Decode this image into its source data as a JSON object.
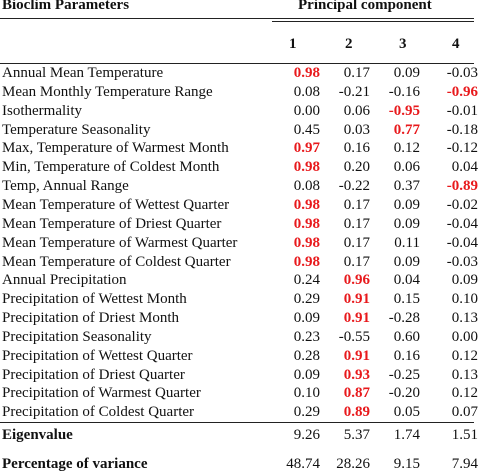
{
  "header": {
    "params_label": "Bioclim Parameters",
    "pc_label": "Principal component",
    "components": [
      "1",
      "2",
      "3",
      "4"
    ]
  },
  "highlight_color": "#e8191c",
  "rows": [
    {
      "label": "Annual Mean Temperature",
      "values": [
        "0.98",
        "0.17",
        "0.09",
        "-0.03"
      ],
      "highlight": 0
    },
    {
      "label": "Mean Monthly Temperature Range",
      "values": [
        "0.08",
        "-0.21",
        "-0.16",
        "-0.96"
      ],
      "highlight": 3
    },
    {
      "label": "Isothermality",
      "values": [
        "0.00",
        "0.06",
        "-0.95",
        "-0.01"
      ],
      "highlight": 2
    },
    {
      "label": "Temperature Seasonality",
      "values": [
        "0.45",
        "0.03",
        "0.77",
        "-0.18"
      ],
      "highlight": 2
    },
    {
      "label": "Max, Temperature of Warmest Month",
      "values": [
        "0.97",
        "0.16",
        "0.12",
        "-0.12"
      ],
      "highlight": 0
    },
    {
      "label": "Min, Temperature of Coldest Month",
      "values": [
        "0.98",
        "0.20",
        "0.06",
        "0.04"
      ],
      "highlight": 0
    },
    {
      "label": "Temp, Annual Range",
      "values": [
        "0.08",
        "-0.22",
        "0.37",
        "-0.89"
      ],
      "highlight": 3
    },
    {
      "label": "Mean Temperature of Wettest Quarter",
      "values": [
        "0.98",
        "0.17",
        "0.09",
        "-0.02"
      ],
      "highlight": 0
    },
    {
      "label": "Mean Temperature of Driest Quarter",
      "values": [
        "0.98",
        "0.17",
        "0.09",
        "-0.04"
      ],
      "highlight": 0
    },
    {
      "label": "Mean Temperature of Warmest Quarter",
      "values": [
        "0.98",
        "0.17",
        "0.11",
        "-0.04"
      ],
      "highlight": 0
    },
    {
      "label": "Mean Temperature of Coldest Quarter",
      "values": [
        "0.98",
        "0.17",
        "0.09",
        "-0.03"
      ],
      "highlight": 0
    },
    {
      "label": "Annual Precipitation",
      "values": [
        "0.24",
        "0.96",
        "0.04",
        "0.09"
      ],
      "highlight": 1
    },
    {
      "label": "Precipitation of Wettest Month",
      "values": [
        "0.29",
        "0.91",
        "0.15",
        "0.10"
      ],
      "highlight": 1
    },
    {
      "label": "Precipitation of Driest Month",
      "values": [
        "0.09",
        "0.91",
        "-0.28",
        "0.13"
      ],
      "highlight": 1
    },
    {
      "label": "Precipitation Seasonality",
      "values": [
        "0.23",
        "-0.55",
        "0.60",
        "0.00"
      ],
      "highlight": -1
    },
    {
      "label": "Precipitation of Wettest Quarter",
      "values": [
        "0.28",
        "0.91",
        "0.16",
        "0.12"
      ],
      "highlight": 1
    },
    {
      "label": "Precipitation of Driest Quarter",
      "values": [
        "0.09",
        "0.93",
        "-0.25",
        "0.13"
      ],
      "highlight": 1
    },
    {
      "label": "Precipitation of Warmest Quarter",
      "values": [
        "0.10",
        "0.87",
        "-0.20",
        "0.12"
      ],
      "highlight": 1
    },
    {
      "label": "Precipitation of Coldest Quarter",
      "values": [
        "0.29",
        "0.89",
        "0.05",
        "0.07"
      ],
      "highlight": 1
    }
  ],
  "footer": [
    {
      "label": "Eigenvalue",
      "values": [
        "9.26",
        "5.37",
        "1.74",
        "1.51"
      ]
    },
    {
      "label": "Percentage of variance",
      "values": [
        "48.74",
        "28.26",
        "9.15",
        "7.94"
      ]
    }
  ]
}
